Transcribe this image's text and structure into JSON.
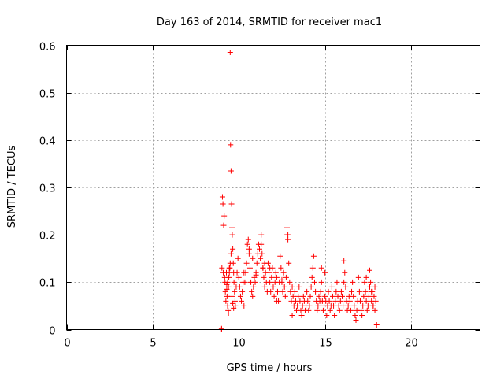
{
  "chart_data": {
    "type": "scatter",
    "title": "Day 163 of 2014, SRMTID for receiver mac1",
    "xlabel": "GPS time / hours",
    "ylabel": "SRMTID / TECUs",
    "xlim": [
      0,
      24
    ],
    "ylim": [
      0,
      0.6
    ],
    "xticks": [
      0,
      5,
      10,
      15,
      20
    ],
    "yticks": [
      0,
      0.1,
      0.2,
      0.3,
      0.4,
      0.5,
      0.6
    ],
    "xtick_labels": [
      "0",
      "5",
      "10",
      "15",
      "20"
    ],
    "ytick_labels": [
      "0",
      "0.1",
      "0.2",
      "0.3",
      "0.4",
      "0.5",
      "0.6"
    ],
    "grid": true,
    "marker": "plus",
    "color": "#ff0000",
    "series": [
      {
        "name": "SRMTID",
        "x": [
          9.0,
          9.0,
          9.02,
          9.05,
          9.08,
          9.1,
          9.12,
          9.15,
          9.18,
          9.2,
          9.22,
          9.25,
          9.28,
          9.3,
          9.32,
          9.35,
          9.38,
          9.4,
          9.42,
          9.45,
          9.48,
          9.5,
          9.52,
          9.55,
          9.58,
          9.6,
          9.62,
          9.65,
          9.68,
          9.7,
          9.72,
          9.75,
          9.78,
          9.8,
          9.85,
          9.9,
          9.95,
          10.0,
          10.05,
          10.1,
          10.15,
          10.2,
          10.25,
          10.3,
          10.35,
          10.4,
          10.45,
          10.5,
          10.55,
          10.6,
          10.65,
          10.7,
          10.75,
          10.8,
          10.85,
          10.9,
          10.95,
          11.0,
          11.05,
          11.1,
          11.15,
          11.2,
          11.25,
          11.3,
          11.35,
          11.4,
          11.45,
          11.5,
          11.55,
          11.6,
          11.65,
          11.7,
          11.75,
          11.8,
          11.85,
          11.9,
          11.95,
          12.0,
          12.05,
          12.1,
          12.15,
          12.2,
          12.25,
          12.3,
          12.35,
          12.4,
          12.45,
          12.5,
          12.55,
          12.6,
          12.65,
          12.7,
          12.75,
          12.8,
          12.85,
          12.9,
          12.95,
          13.0,
          13.05,
          13.1,
          13.15,
          13.2,
          13.25,
          13.3,
          13.35,
          13.4,
          13.45,
          13.5,
          13.55,
          13.6,
          13.65,
          13.7,
          13.75,
          13.8,
          13.85,
          13.9,
          13.95,
          14.0,
          14.05,
          14.1,
          14.15,
          14.2,
          14.25,
          14.3,
          14.35,
          14.4,
          14.45,
          14.5,
          14.55,
          14.6,
          14.65,
          14.7,
          14.75,
          14.8,
          14.85,
          14.9,
          14.95,
          15.0,
          15.05,
          15.1,
          15.15,
          15.2,
          15.25,
          15.3,
          15.35,
          15.4,
          15.45,
          15.5,
          15.55,
          15.6,
          15.65,
          15.7,
          15.75,
          15.8,
          15.85,
          15.9,
          15.95,
          16.0,
          16.05,
          16.1,
          16.15,
          16.2,
          16.25,
          16.3,
          16.35,
          16.4,
          16.45,
          16.5,
          16.55,
          16.6,
          16.65,
          16.7,
          16.75,
          16.8,
          16.85,
          16.9,
          16.95,
          17.0,
          17.05,
          17.1,
          17.15,
          17.2,
          17.25,
          17.3,
          17.35,
          17.4,
          17.45,
          17.5,
          17.55,
          17.6,
          17.65,
          17.7,
          17.75,
          17.8,
          17.85,
          17.9,
          17.95,
          18.0,
          9.5,
          9.45,
          9.55,
          9.35,
          9.4,
          9.3,
          9.6,
          9.65,
          9.7,
          10.6,
          10.8,
          11.3,
          11.5,
          11.4,
          12.8,
          12.85,
          14.8,
          15.0,
          16.1,
          17.4,
          17.6,
          17.7,
          17.8,
          17.9,
          13.1,
          12.2,
          11.8,
          10.3,
          11.0,
          12.5
        ],
        "y": [
          0.0,
          0.002,
          0.13,
          0.28,
          0.265,
          0.12,
          0.22,
          0.24,
          0.11,
          0.1,
          0.08,
          0.06,
          0.12,
          0.095,
          0.07,
          0.05,
          0.04,
          0.035,
          0.11,
          0.12,
          0.13,
          0.585,
          0.39,
          0.335,
          0.265,
          0.215,
          0.2,
          0.17,
          0.14,
          0.12,
          0.1,
          0.08,
          0.06,
          0.05,
          0.09,
          0.12,
          0.15,
          0.11,
          0.09,
          0.07,
          0.06,
          0.08,
          0.1,
          0.05,
          0.1,
          0.12,
          0.14,
          0.18,
          0.19,
          0.16,
          0.13,
          0.1,
          0.08,
          0.07,
          0.09,
          0.11,
          0.1,
          0.12,
          0.14,
          0.16,
          0.18,
          0.17,
          0.15,
          0.2,
          0.16,
          0.13,
          0.11,
          0.09,
          0.12,
          0.1,
          0.08,
          0.14,
          0.12,
          0.1,
          0.08,
          0.11,
          0.13,
          0.09,
          0.07,
          0.1,
          0.12,
          0.11,
          0.08,
          0.06,
          0.1,
          0.155,
          0.13,
          0.1,
          0.08,
          0.12,
          0.09,
          0.07,
          0.11,
          0.215,
          0.2,
          0.14,
          0.1,
          0.08,
          0.06,
          0.09,
          0.07,
          0.05,
          0.08,
          0.06,
          0.04,
          0.05,
          0.07,
          0.09,
          0.06,
          0.04,
          0.03,
          0.05,
          0.07,
          0.06,
          0.04,
          0.05,
          0.08,
          0.06,
          0.04,
          0.05,
          0.07,
          0.09,
          0.11,
          0.13,
          0.155,
          0.1,
          0.08,
          0.06,
          0.04,
          0.05,
          0.07,
          0.06,
          0.08,
          0.1,
          0.06,
          0.04,
          0.05,
          0.07,
          0.06,
          0.03,
          0.05,
          0.08,
          0.06,
          0.04,
          0.05,
          0.09,
          0.07,
          0.05,
          0.03,
          0.06,
          0.08,
          0.1,
          0.07,
          0.05,
          0.04,
          0.06,
          0.08,
          0.07,
          0.05,
          0.145,
          0.12,
          0.09,
          0.06,
          0.04,
          0.05,
          0.07,
          0.06,
          0.04,
          0.08,
          0.1,
          0.07,
          0.05,
          0.03,
          0.02,
          0.04,
          0.06,
          0.11,
          0.08,
          0.06,
          0.04,
          0.03,
          0.05,
          0.07,
          0.1,
          0.08,
          0.06,
          0.04,
          0.05,
          0.07,
          0.125,
          0.1,
          0.06,
          0.08,
          0.05,
          0.07,
          0.09,
          0.06,
          0.01,
          0.14,
          0.13,
          0.16,
          0.1,
          0.09,
          0.085,
          0.07,
          0.055,
          0.045,
          0.17,
          0.15,
          0.18,
          0.14,
          0.13,
          0.2,
          0.19,
          0.13,
          0.12,
          0.1,
          0.11,
          0.09,
          0.08,
          0.05,
          0.04,
          0.03,
          0.06,
          0.13,
          0.12,
          0.115,
          0.105
        ]
      }
    ]
  }
}
